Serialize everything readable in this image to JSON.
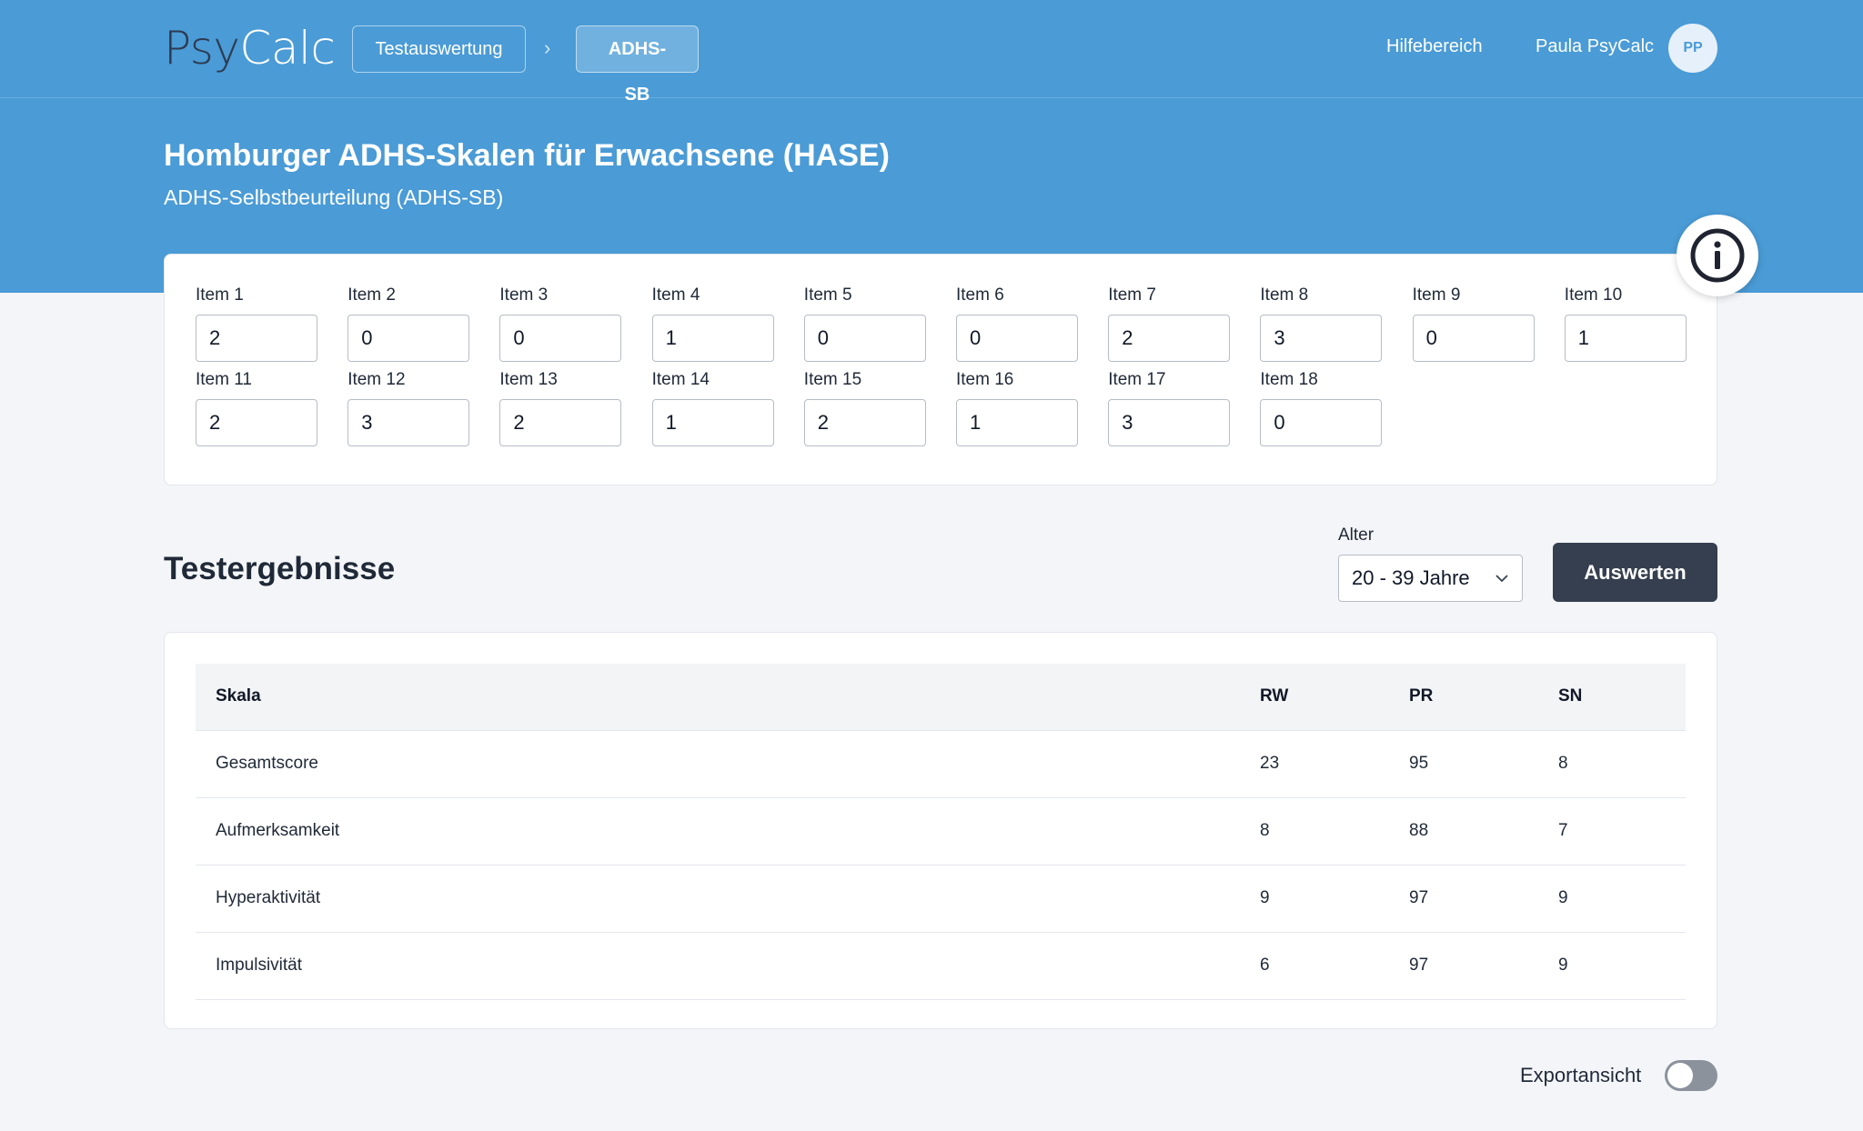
{
  "header": {
    "logo_part1": "Psy",
    "logo_part2": "Calc",
    "breadcrumb": [
      "Testauswertung",
      "ADHS-SB"
    ],
    "breadcrumb_separator": "›",
    "help_link": "Hilfebereich",
    "user_name": "Paula PsyCalc",
    "user_initials": "PP"
  },
  "page": {
    "title": "Homburger ADHS-Skalen für Erwachsene (HASE)",
    "subtitle": "ADHS-Selbstbeurteilung (ADHS-SB)"
  },
  "items": [
    {
      "label": "Item 1",
      "value": "2"
    },
    {
      "label": "Item 2",
      "value": "0"
    },
    {
      "label": "Item 3",
      "value": "0"
    },
    {
      "label": "Item 4",
      "value": "1"
    },
    {
      "label": "Item 5",
      "value": "0"
    },
    {
      "label": "Item 6",
      "value": "0"
    },
    {
      "label": "Item 7",
      "value": "2"
    },
    {
      "label": "Item 8",
      "value": "3"
    },
    {
      "label": "Item 9",
      "value": "0"
    },
    {
      "label": "Item 10",
      "value": "1"
    },
    {
      "label": "Item 11",
      "value": "2"
    },
    {
      "label": "Item 12",
      "value": "3"
    },
    {
      "label": "Item 13",
      "value": "2"
    },
    {
      "label": "Item 14",
      "value": "1"
    },
    {
      "label": "Item 15",
      "value": "2"
    },
    {
      "label": "Item 16",
      "value": "1"
    },
    {
      "label": "Item 17",
      "value": "3"
    },
    {
      "label": "Item 18",
      "value": "0"
    }
  ],
  "results": {
    "title": "Testergebnisse",
    "age_label": "Alter",
    "age_value": "20 - 39 Jahre",
    "evaluate_button": "Auswerten",
    "columns": [
      "Skala",
      "RW",
      "PR",
      "SN"
    ],
    "rows": [
      {
        "skala": "Gesamtscore",
        "rw": "23",
        "pr": "95",
        "sn": "8"
      },
      {
        "skala": "Aufmerksamkeit",
        "rw": "8",
        "pr": "88",
        "sn": "7"
      },
      {
        "skala": "Hyperaktivität",
        "rw": "9",
        "pr": "97",
        "sn": "9"
      },
      {
        "skala": "Impulsivität",
        "rw": "6",
        "pr": "97",
        "sn": "9"
      }
    ]
  },
  "export": {
    "label": "Exportansicht",
    "enabled": false
  },
  "icons": {
    "info": "info-circle-icon",
    "chevron": "chevron-down-icon"
  },
  "colors": {
    "brand_blue": "#4a9bd6",
    "dark_button": "#353f4f",
    "logo_dark": "#2e3a50"
  }
}
